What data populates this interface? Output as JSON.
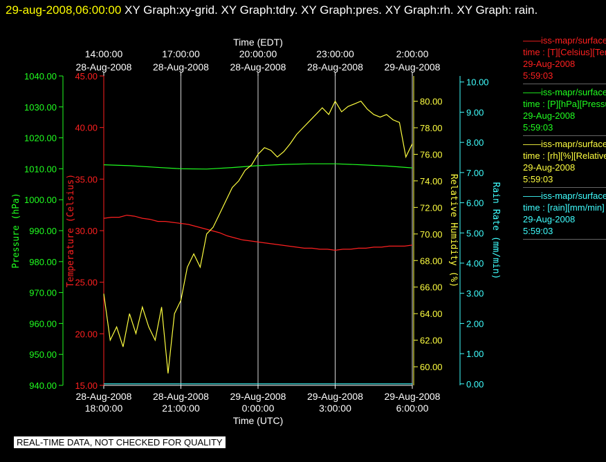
{
  "header": {
    "timestamp": "29-aug-2008,06:00:00",
    "rest": " XY Graph:xy-grid.  XY Graph:tdry.  XY Graph:pres.  XY Graph:rh.  XY Graph: rain."
  },
  "note": "REAL-TIME DATA, NOT CHECKED FOR QUALITY",
  "legend": [
    {
      "line1": "——iss-mapr/surface",
      "line2": "time : [T][Celsius][Temp",
      "line3": "29-Aug-2008",
      "line4": "5:59:03",
      "color": "#ff2020"
    },
    {
      "line1": "——iss-mapr/surface",
      "line2": "time : [P][hPa][Pressure",
      "line3": "29-Aug-2008",
      "line4": "5:59:03",
      "color": "#20ff20"
    },
    {
      "line1": "——iss-mapr/surface",
      "line2": "time : [rh][%][Relative",
      "line3": "29-Aug-2008",
      "line4": "5:59:03",
      "color": "#ffff40"
    },
    {
      "line1": "——iss-mapr/surface",
      "line2": "time : [rain][mm/min]",
      "line3": "29-Aug-2008",
      "line4": "5:59:03",
      "color": "#40ffff"
    }
  ],
  "chart_data": {
    "type": "line",
    "top_axis": {
      "label": "Time (EDT)",
      "ticks": [
        {
          "h": 0,
          "time": "14:00:00",
          "date": "28-Aug-2008"
        },
        {
          "h": 3,
          "time": "17:00:00",
          "date": "28-Aug-2008"
        },
        {
          "h": 6,
          "time": "20:00:00",
          "date": "28-Aug-2008"
        },
        {
          "h": 9,
          "time": "23:00:00",
          "date": "28-Aug-2008"
        },
        {
          "h": 12,
          "time": "2:00:00",
          "date": "29-Aug-2008"
        }
      ]
    },
    "bottom_axis": {
      "label": "Time (UTC)",
      "ticks": [
        {
          "h": 0,
          "date": "28-Aug-2008",
          "time": "18:00:00"
        },
        {
          "h": 3,
          "date": "28-Aug-2008",
          "time": "21:00:00"
        },
        {
          "h": 6,
          "date": "29-Aug-2008",
          "time": "0:00:00"
        },
        {
          "h": 9,
          "date": "29-Aug-2008",
          "time": "3:00:00"
        },
        {
          "h": 12,
          "date": "29-Aug-2008",
          "time": "6:00:00"
        }
      ]
    },
    "x_range_hours": [
      0,
      12
    ],
    "grid": "vertical lines at tick positions",
    "axes": {
      "pressure": {
        "label": "Pressure (hPa)",
        "range": [
          940,
          1040
        ],
        "ticks": [
          "940.00",
          "950.00",
          "960.00",
          "970.00",
          "980.00",
          "990.00",
          "1000.00",
          "1010.00",
          "1020.00",
          "1030.00",
          "1040.00"
        ],
        "color": "#20ff20"
      },
      "temperature": {
        "label": "Temperature (Celsius)",
        "range": [
          15,
          45
        ],
        "ticks": [
          "15.00",
          "20.00",
          "25.00",
          "30.00",
          "35.00",
          "40.00",
          "45.00"
        ],
        "color": "#ff2020"
      },
      "rh": {
        "label": "Relative Humidity (%)",
        "range": [
          58.6,
          81.9
        ],
        "ticks": [
          "60.00",
          "62.00",
          "64.00",
          "66.00",
          "68.00",
          "70.00",
          "72.00",
          "74.00",
          "76.00",
          "78.00",
          "80.00"
        ],
        "color": "#ffff40"
      },
      "rain": {
        "label": "Rain Rate (mm/min)",
        "range": [
          -0.05,
          10.2
        ],
        "ticks": [
          "0.00",
          "1.00",
          "2.00",
          "3.00",
          "4.00",
          "5.00",
          "6.00",
          "7.00",
          "8.00",
          "9.00",
          "10.00"
        ],
        "color": "#40ffff"
      }
    },
    "series": [
      {
        "name": "tdry",
        "axis": "temperature",
        "color": "#ff2020",
        "x": [
          0,
          0.3,
          0.6,
          0.9,
          1.2,
          1.5,
          1.8,
          2.1,
          2.4,
          2.7,
          3.0,
          3.3,
          3.6,
          3.9,
          4.2,
          4.5,
          4.8,
          5.1,
          5.4,
          5.7,
          6.0,
          6.3,
          6.6,
          6.9,
          7.2,
          7.5,
          7.8,
          8.1,
          8.4,
          8.7,
          9.0,
          9.3,
          9.6,
          9.9,
          10.2,
          10.5,
          10.8,
          11.1,
          11.4,
          11.7,
          12.0
        ],
        "y": [
          31.2,
          31.3,
          31.3,
          31.5,
          31.4,
          31.2,
          31.1,
          30.9,
          30.9,
          30.8,
          30.7,
          30.6,
          30.4,
          30.2,
          30.0,
          29.8,
          29.5,
          29.3,
          29.1,
          29.0,
          28.9,
          28.8,
          28.7,
          28.6,
          28.5,
          28.4,
          28.3,
          28.3,
          28.2,
          28.2,
          28.1,
          28.2,
          28.2,
          28.3,
          28.3,
          28.4,
          28.4,
          28.5,
          28.5,
          28.5,
          28.6
        ]
      },
      {
        "name": "pres",
        "axis": "pressure",
        "color": "#20ff20",
        "x": [
          0,
          1,
          2,
          3,
          4,
          5,
          6,
          7,
          8,
          9,
          10,
          11,
          12
        ],
        "y": [
          1011.3,
          1011.0,
          1010.5,
          1010.0,
          1009.9,
          1010.4,
          1011.0,
          1011.4,
          1011.6,
          1011.6,
          1011.3,
          1010.9,
          1010.3
        ]
      },
      {
        "name": "rh",
        "axis": "rh",
        "color": "#ffff40",
        "x": [
          0,
          0.25,
          0.5,
          0.75,
          1.0,
          1.25,
          1.5,
          1.75,
          2.0,
          2.25,
          2.5,
          2.75,
          3.0,
          3.25,
          3.5,
          3.75,
          4.0,
          4.25,
          4.5,
          4.75,
          5.0,
          5.25,
          5.5,
          5.75,
          6.0,
          6.25,
          6.5,
          6.75,
          7.0,
          7.25,
          7.5,
          7.75,
          8.0,
          8.25,
          8.5,
          8.75,
          9.0,
          9.25,
          9.5,
          9.75,
          10.0,
          10.25,
          10.5,
          10.75,
          11.0,
          11.25,
          11.5,
          11.75,
          12.0
        ],
        "y": [
          65.5,
          62.0,
          63.0,
          61.5,
          64.0,
          62.5,
          64.5,
          63.0,
          62.0,
          64.5,
          59.5,
          64.0,
          65.0,
          67.5,
          68.5,
          67.5,
          70.0,
          70.5,
          71.5,
          72.5,
          73.5,
          74.0,
          74.8,
          75.2,
          76.0,
          76.5,
          76.3,
          75.8,
          76.2,
          76.8,
          77.5,
          78.0,
          78.5,
          79.0,
          79.5,
          79.0,
          80.0,
          79.2,
          79.6,
          79.8,
          80.0,
          79.4,
          79.0,
          78.8,
          79.0,
          78.6,
          78.4,
          75.8,
          76.8
        ]
      },
      {
        "name": "rain",
        "axis": "rain",
        "color": "#40ffff",
        "x": [
          0,
          12
        ],
        "y": [
          0,
          0
        ]
      }
    ]
  }
}
